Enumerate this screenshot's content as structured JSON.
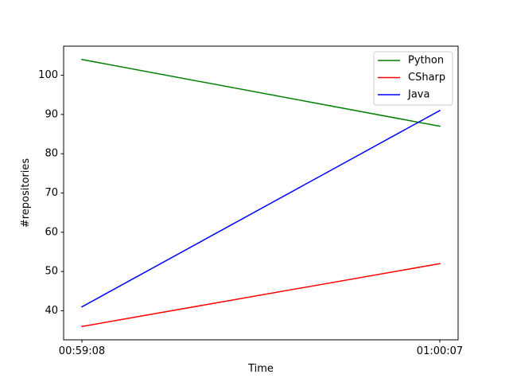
{
  "chart_data": {
    "type": "line",
    "title": "",
    "xlabel": "Time",
    "ylabel": "#repositories",
    "x": [
      "00:59:08",
      "01:00:07"
    ],
    "ylim": [
      32.6,
      107.4
    ],
    "yticks": [
      40,
      50,
      60,
      70,
      80,
      90,
      100
    ],
    "grid": false,
    "legend_position": "upper-right",
    "series": [
      {
        "name": "Python",
        "color": "#008000",
        "values": [
          104,
          87
        ]
      },
      {
        "name": "CSharp",
        "color": "#ff0000",
        "values": [
          36,
          52
        ]
      },
      {
        "name": "Java",
        "color": "#0000ff",
        "values": [
          41,
          91
        ]
      }
    ]
  }
}
